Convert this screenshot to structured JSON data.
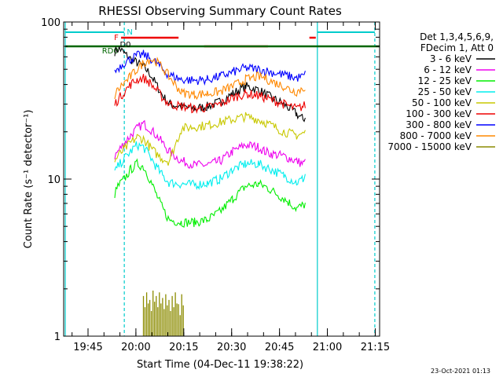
{
  "chart_data": {
    "type": "line",
    "title": "RHESSI Observing Summary Count Rates",
    "xlabel": "Start Time (04-Dec-11 19:38:22)",
    "ylabel": "Count Rate (s⁻¹ detector⁻¹)",
    "yscale": "log",
    "ylim": [
      1,
      100
    ],
    "xlim_minutes": [
      -1,
      98
    ],
    "x_ticks": [
      "19:45",
      "20:00",
      "20:15",
      "20:30",
      "20:45",
      "21:00",
      "21:15"
    ],
    "y_ticks": [
      "1",
      "10",
      "100"
    ],
    "legend_header": [
      "Det 1,3,4,5,6,9,",
      "FDecim 1, Att 0"
    ],
    "legend_position": "right",
    "series": [
      {
        "name": "3 - 6 keV",
        "color": "#000000",
        "points": [
          [
            15,
            65
          ],
          [
            16.5,
            68
          ],
          [
            18,
            63
          ],
          [
            20,
            58
          ],
          [
            22,
            55
          ],
          [
            24,
            52
          ],
          [
            26,
            47
          ],
          [
            28,
            40
          ],
          [
            30,
            34
          ],
          [
            32,
            30
          ],
          [
            36,
            29
          ],
          [
            40,
            28
          ],
          [
            44,
            29
          ],
          [
            48,
            31
          ],
          [
            52,
            35
          ],
          [
            56,
            39
          ],
          [
            60,
            37
          ],
          [
            62,
            35
          ],
          [
            64,
            33
          ],
          [
            68,
            30
          ],
          [
            72,
            26
          ],
          [
            74,
            24
          ],
          [
            75,
            25
          ]
        ]
      },
      {
        "name": "6 - 12 keV",
        "color": "#ee00ee",
        "points": [
          [
            15,
            14
          ],
          [
            16,
            15
          ],
          [
            18,
            17
          ],
          [
            20,
            19
          ],
          [
            22,
            21
          ],
          [
            24,
            22.5
          ],
          [
            26,
            21
          ],
          [
            28,
            19
          ],
          [
            30,
            17
          ],
          [
            32,
            15
          ],
          [
            36,
            13
          ],
          [
            40,
            12.3
          ],
          [
            44,
            12.3
          ],
          [
            48,
            13
          ],
          [
            52,
            15
          ],
          [
            56,
            16.5
          ],
          [
            60,
            16
          ],
          [
            62,
            15
          ],
          [
            64,
            14.5
          ],
          [
            68,
            14
          ],
          [
            70,
            13.5
          ],
          [
            72,
            13
          ],
          [
            74,
            12.5
          ],
          [
            75,
            13
          ]
        ]
      },
      {
        "name": "12 - 25 keV",
        "color": "#00ee00",
        "points": [
          [
            15,
            8
          ],
          [
            16,
            9
          ],
          [
            18,
            10
          ],
          [
            20,
            11.5
          ],
          [
            22,
            12.5
          ],
          [
            24,
            12
          ],
          [
            26,
            10
          ],
          [
            28,
            8
          ],
          [
            30,
            6.5
          ],
          [
            32,
            5.5
          ],
          [
            36,
            5.3
          ],
          [
            40,
            5.3
          ],
          [
            44,
            5.5
          ],
          [
            48,
            6.2
          ],
          [
            52,
            7.5
          ],
          [
            56,
            9
          ],
          [
            60,
            9.3
          ],
          [
            62,
            9
          ],
          [
            64,
            8.5
          ],
          [
            68,
            7.5
          ],
          [
            70,
            7
          ],
          [
            72,
            6.5
          ],
          [
            74,
            6.8
          ],
          [
            75,
            7
          ]
        ]
      },
      {
        "name": "25 - 50 keV",
        "color": "#00eeee",
        "points": [
          [
            15,
            11
          ],
          [
            16,
            12
          ],
          [
            18,
            13.5
          ],
          [
            20,
            15
          ],
          [
            22,
            16.5
          ],
          [
            24,
            16
          ],
          [
            26,
            14
          ],
          [
            28,
            12
          ],
          [
            30,
            10.5
          ],
          [
            32,
            9.5
          ],
          [
            36,
            9.3
          ],
          [
            40,
            9.2
          ],
          [
            44,
            9.4
          ],
          [
            48,
            10
          ],
          [
            52,
            11.5
          ],
          [
            56,
            12.5
          ],
          [
            60,
            12.5
          ],
          [
            62,
            12
          ],
          [
            64,
            11.5
          ],
          [
            68,
            10.5
          ],
          [
            70,
            10
          ],
          [
            72,
            9.5
          ],
          [
            74,
            10
          ],
          [
            75,
            11
          ]
        ]
      },
      {
        "name": "50 - 100 keV",
        "color": "#c8c800",
        "points": [
          [
            15,
            13
          ],
          [
            16,
            14
          ],
          [
            18,
            15.5
          ],
          [
            20,
            17
          ],
          [
            22,
            18.5
          ],
          [
            24,
            18
          ],
          [
            26,
            16
          ],
          [
            28,
            14.5
          ],
          [
            30,
            13.5
          ],
          [
            32,
            13
          ],
          [
            36,
            21
          ],
          [
            40,
            21.5
          ],
          [
            44,
            22
          ],
          [
            48,
            23
          ],
          [
            52,
            24
          ],
          [
            56,
            25
          ],
          [
            60,
            24
          ],
          [
            62,
            23
          ],
          [
            64,
            22
          ],
          [
            68,
            20
          ],
          [
            70,
            19.5
          ],
          [
            72,
            19
          ],
          [
            74,
            19.5
          ],
          [
            75,
            20
          ]
        ]
      },
      {
        "name": "100 - 300 keV",
        "color": "#ee0000",
        "points": [
          [
            15,
            30
          ],
          [
            16,
            32
          ],
          [
            18,
            36
          ],
          [
            20,
            40
          ],
          [
            22,
            43
          ],
          [
            24,
            44
          ],
          [
            26,
            41
          ],
          [
            28,
            37
          ],
          [
            30,
            33
          ],
          [
            32,
            30
          ],
          [
            36,
            29
          ],
          [
            40,
            28
          ],
          [
            44,
            28.5
          ],
          [
            48,
            30
          ],
          [
            52,
            33
          ],
          [
            56,
            35
          ],
          [
            60,
            34
          ],
          [
            62,
            33
          ],
          [
            64,
            32
          ],
          [
            68,
            30
          ],
          [
            70,
            29
          ],
          [
            72,
            28
          ],
          [
            74,
            29
          ],
          [
            75,
            30
          ]
        ]
      },
      {
        "name": "300 - 800 keV",
        "color": "#0000ff",
        "points": [
          [
            15,
            48
          ],
          [
            16,
            51
          ],
          [
            18,
            55
          ],
          [
            20,
            58
          ],
          [
            22,
            61
          ],
          [
            24,
            62
          ],
          [
            26,
            59
          ],
          [
            28,
            55
          ],
          [
            30,
            50
          ],
          [
            32,
            46
          ],
          [
            36,
            43
          ],
          [
            40,
            42.5
          ],
          [
            44,
            43
          ],
          [
            48,
            45
          ],
          [
            52,
            48
          ],
          [
            56,
            51
          ],
          [
            60,
            50
          ],
          [
            62,
            49
          ],
          [
            64,
            48
          ],
          [
            68,
            46
          ],
          [
            70,
            45
          ],
          [
            72,
            44
          ],
          [
            74,
            45
          ],
          [
            75,
            47
          ]
        ]
      },
      {
        "name": "800 - 7000 keV",
        "color": "#ff8800",
        "points": [
          [
            15,
            34
          ],
          [
            16,
            37
          ],
          [
            18,
            41
          ],
          [
            20,
            45
          ],
          [
            22,
            50
          ],
          [
            24,
            55
          ],
          [
            26,
            58
          ],
          [
            28,
            56
          ],
          [
            30,
            51
          ],
          [
            32,
            45
          ],
          [
            34,
            40
          ],
          [
            36,
            35.5
          ],
          [
            40,
            34.5
          ],
          [
            44,
            35
          ],
          [
            48,
            36
          ],
          [
            52,
            39
          ],
          [
            56,
            43
          ],
          [
            60,
            45
          ],
          [
            62,
            44
          ],
          [
            64,
            42
          ],
          [
            68,
            39
          ],
          [
            70,
            37
          ],
          [
            72,
            36
          ],
          [
            74,
            38
          ],
          [
            75,
            39
          ]
        ]
      },
      {
        "name": "7000 - 15000 keV",
        "color": "#8c8c00",
        "points": [
          [
            24,
            1.8
          ],
          [
            25,
            1.9
          ],
          [
            26,
            1.7
          ],
          [
            27,
            1.95
          ],
          [
            28,
            1.8
          ],
          [
            29,
            1.9
          ],
          [
            30,
            1.75
          ],
          [
            31,
            1.85
          ],
          [
            32,
            1.7
          ],
          [
            33,
            1.8
          ],
          [
            34,
            1.9
          ],
          [
            35,
            1.6
          ],
          [
            36,
            1.85
          ]
        ]
      }
    ],
    "markers": [
      {
        "label": "N",
        "color": "#00cccc"
      },
      {
        "label": "F",
        "color": "#ee0000"
      },
      {
        "label": "D0",
        "color": "#000000"
      },
      {
        "label": "RD0",
        "color": "#006600"
      }
    ],
    "timestamp": "23-Oct-2021 01:13"
  }
}
